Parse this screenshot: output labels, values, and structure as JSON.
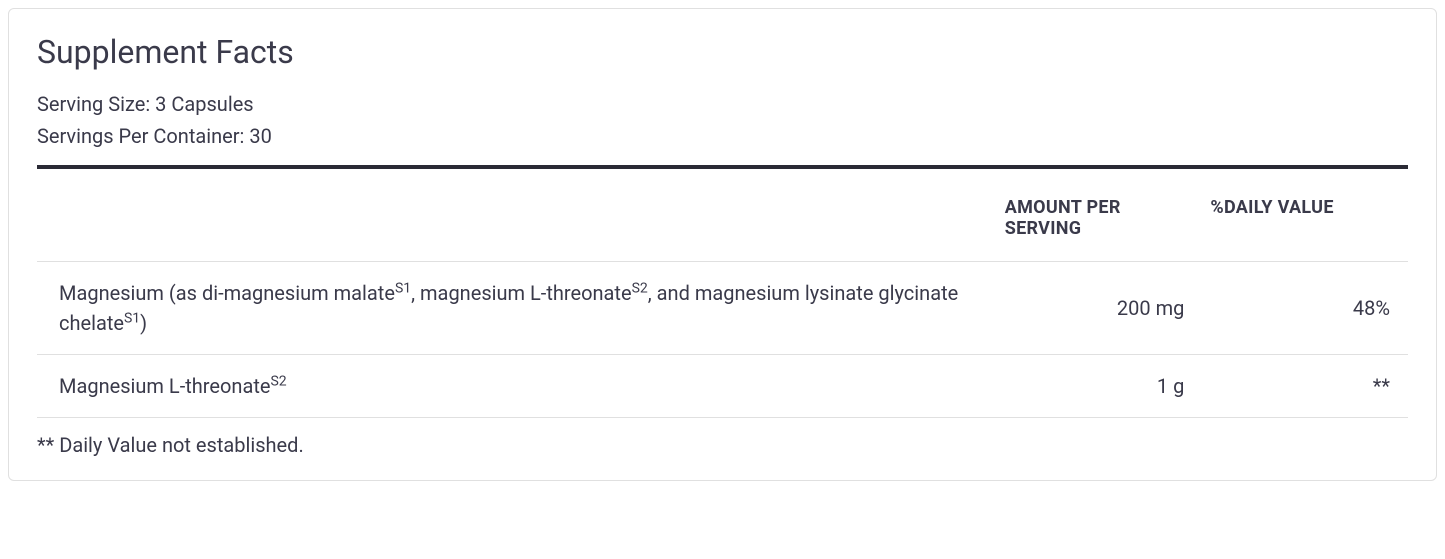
{
  "panel": {
    "title": "Supplement Facts",
    "serving_size_label": "Serving Size:",
    "serving_size_value": "3 Capsules",
    "servings_per_container_label": "Servings Per Container:",
    "servings_per_container_value": "30",
    "border_color": "#e0e0e0",
    "divider_color": "#2a2a35",
    "text_color": "#3a3a4a",
    "background_color": "#ffffff"
  },
  "table": {
    "headers": {
      "col1": "",
      "col2": "AMOUNT PER SERVING",
      "col3": "%DAILY VALUE"
    },
    "rows": [
      {
        "name_parts": {
          "p1": "Magnesium (as di-magnesium malate",
          "s1": "S1",
          "p2": ", magnesium L-threonate",
          "s2": "S2",
          "p3": ", and magnesium lysinate glycinate chelate",
          "s3": "S1",
          "p4": ")"
        },
        "amount": "200 mg",
        "dv": "48%"
      },
      {
        "name_parts": {
          "p1": "Magnesium L-threonate",
          "s1": "S2",
          "p2": "",
          "s2": "",
          "p3": "",
          "s3": "",
          "p4": ""
        },
        "amount": "1 g",
        "dv": "**"
      }
    ],
    "footnote": "** Daily Value not established."
  }
}
